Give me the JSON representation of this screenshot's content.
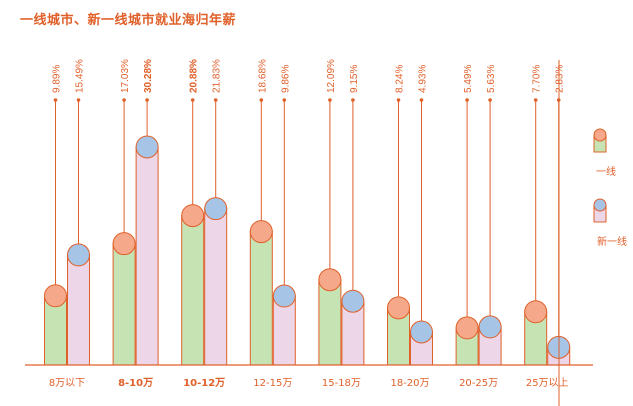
{
  "chart_data": {
    "type": "bar",
    "title": "一线城市、新一线城市就业海归年薪",
    "categories": [
      "8万以下",
      "8-10万",
      "10-12万",
      "12-15万",
      "15-18万",
      "18-20万",
      "20-25万",
      "25万以上"
    ],
    "series": [
      {
        "name": "一线",
        "values": [
          9.89,
          17.03,
          20.88,
          18.68,
          12.09,
          8.24,
          5.49,
          7.7
        ],
        "labels": [
          "9.89%",
          "17.03%",
          "20.88%",
          "18.68%",
          "12.09%",
          "8.24%",
          "5.49%",
          "7.70%"
        ],
        "fill": "#c6e3b4",
        "cap": "#f5a98a"
      },
      {
        "name": "新一线",
        "values": [
          15.49,
          30.28,
          21.83,
          9.86,
          9.15,
          4.93,
          5.63,
          2.83
        ],
        "labels": [
          "15.49%",
          "30.28%",
          "21.83%",
          "9.86%",
          "9.15%",
          "4.93%",
          "5.63%",
          "2.83%"
        ],
        "fill": "#ecd6e7",
        "cap": "#a6c4e5"
      }
    ],
    "bold_categories": [
      "8-10万",
      "10-12万"
    ],
    "bold_labels": [
      [
        false,
        false,
        true,
        false,
        false,
        false,
        false,
        false
      ],
      [
        false,
        true,
        false,
        false,
        false,
        false,
        false,
        false
      ]
    ],
    "xlabel": "",
    "ylabel": "",
    "ylim": [
      0,
      32
    ],
    "grid": false,
    "legend": "right",
    "accent": "#e0602a"
  }
}
